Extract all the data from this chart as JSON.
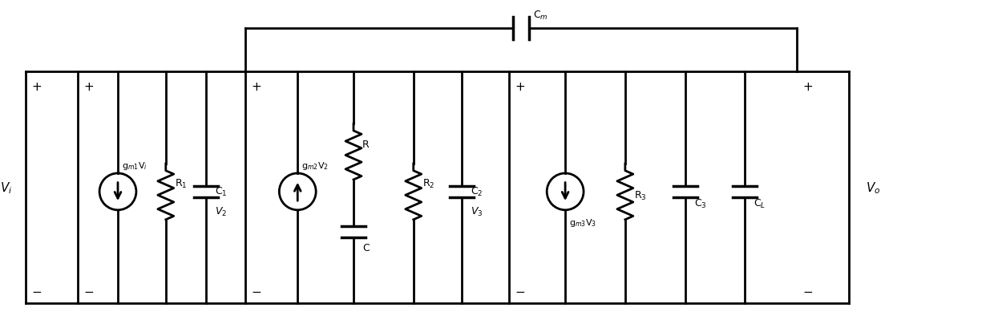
{
  "bg_color": "#ffffff",
  "line_color": "#000000",
  "line_width": 2.0,
  "fig_width": 12.4,
  "fig_height": 4.1,
  "labels": {
    "Vi": "V$_i$",
    "Vo": "V$_o$",
    "V2": "V$_2$",
    "V3": "V$_3$",
    "gm1Vi": "g$_{m1}$V$_i$",
    "gm2V2": "g$_{m2}$V$_2$",
    "gm3V3": "g$_{m3}$V$_3$",
    "R1": "R$_1$",
    "R2": "R$_2$",
    "R3": "R$_3$",
    "Rseries": "R",
    "C1": "C$_1$",
    "C2": "C$_2$",
    "C3": "C$_3$",
    "Cseries": "C",
    "CL": "C$_L$",
    "Cm": "C$_m$"
  }
}
